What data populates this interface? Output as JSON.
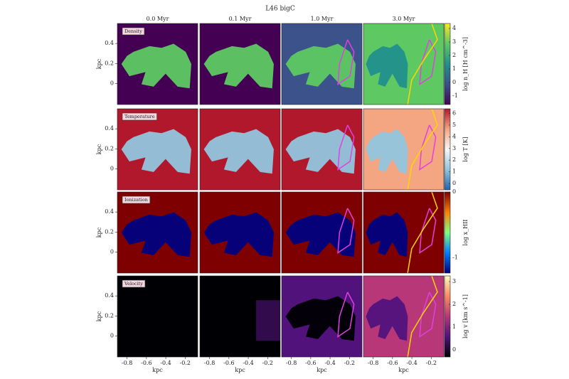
{
  "chart_data": {
    "type": "image-grid",
    "title": "L46 bigC",
    "columns": [
      "0.0 Myr",
      "0.1 Myr",
      "1.0 Myr",
      "3.0 Myr"
    ],
    "xlabel": "kpc",
    "ylabel": "kpc",
    "xlim": [
      -0.9,
      -0.07
    ],
    "xticks": [
      -0.8,
      -0.6,
      -0.4,
      -0.2
    ],
    "ylim": [
      -0.21,
      0.6
    ],
    "yticks": [
      0.4,
      0.2,
      0.0
    ],
    "rows": [
      {
        "label": "Density",
        "colorbar_label": "log n_H [H cm^-3]",
        "cblim": [
          -1.63,
          4.37
        ],
        "cbticks": [
          4,
          3,
          2,
          1,
          0,
          -1
        ],
        "colors": [
          "#440154",
          "#3b528b",
          "#21918c",
          "#5ec962",
          "#fde725"
        ]
      },
      {
        "label": "Temperature",
        "colorbar_label": "log T [K]",
        "cblim": [
          -0.55,
          6.4
        ],
        "cbticks": [
          6,
          5,
          4,
          3,
          2,
          1,
          0
        ],
        "colors": [
          "#2166ac",
          "#92c5de",
          "#f7f7f7",
          "#f4a582",
          "#b2182b"
        ]
      },
      {
        "label": "Ionization",
        "colorbar_label": "log x_HII",
        "cblim": [
          -1.23,
          0
        ],
        "cbticks": [
          0,
          -1
        ],
        "colors": [
          "#00007f",
          "#0080ff",
          "#7fff7f",
          "#ff8000",
          "#7f0000"
        ]
      },
      {
        "label": "Velocity",
        "colorbar_label": "log v [km s^-1]",
        "cblim": [
          -0.31,
          3.25
        ],
        "cbticks": [
          3,
          2,
          1,
          0
        ],
        "colors": [
          "#000004",
          "#51127c",
          "#b73779",
          "#fc8961",
          "#fcfdbf"
        ]
      }
    ]
  }
}
